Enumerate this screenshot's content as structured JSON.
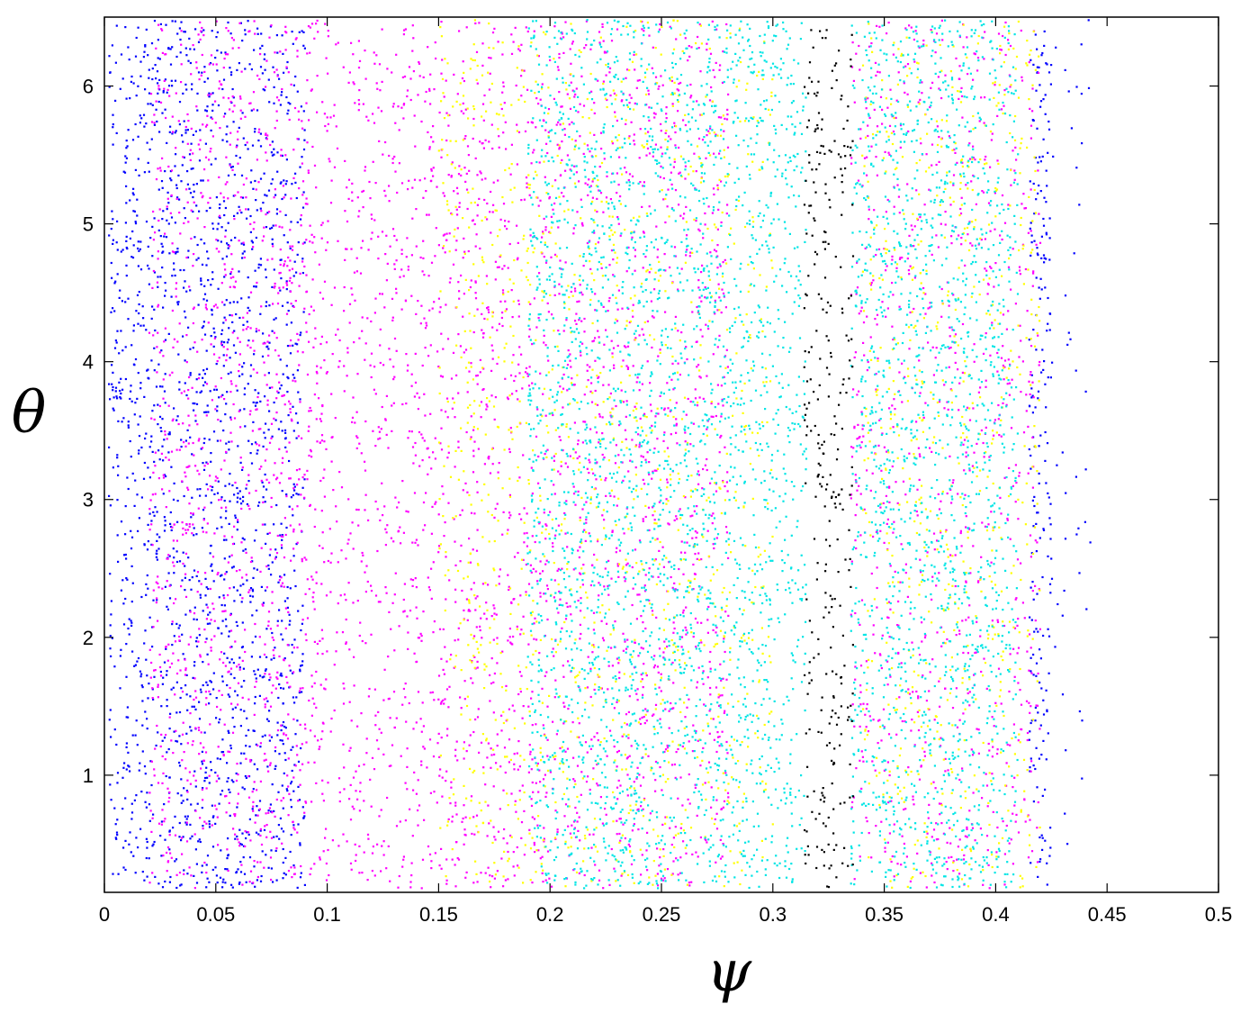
{
  "chart_data": {
    "type": "scatter",
    "title": "",
    "xlabel": "ψ",
    "ylabel": "θ",
    "xlim": [
      0,
      0.5
    ],
    "ylim": [
      0.15,
      6.5
    ],
    "x_ticks": [
      "0",
      "0.05",
      "0.1",
      "0.15",
      "0.2",
      "0.25",
      "0.3",
      "0.35",
      "0.4",
      "0.45",
      "0.5"
    ],
    "y_ticks": [
      "1",
      "2",
      "3",
      "4",
      "5",
      "6"
    ],
    "grid": false,
    "legend": "none",
    "series": [
      {
        "color": "#0000ff",
        "regions": [
          {
            "x_range": [
              0.002,
              0.09
            ],
            "y_range": [
              0.18,
              6.48
            ],
            "density": "high"
          },
          {
            "x_range": [
              0.415,
              0.425
            ],
            "y_range": [
              0.18,
              6.48
            ],
            "density": "high",
            "note": "outer boundary"
          },
          {
            "x_range": [
              0.425,
              0.443
            ],
            "y_range": [
              0.18,
              6.48
            ],
            "density": "sparse"
          }
        ]
      },
      {
        "color": "#ff00ff",
        "regions": [
          {
            "x_range": [
              0.02,
              0.28
            ],
            "y_range": [
              0.18,
              6.48
            ],
            "density": "high"
          },
          {
            "x_range": [
              0.335,
              0.42
            ],
            "y_range": [
              0.18,
              6.48
            ],
            "density": "medium"
          }
        ]
      },
      {
        "color": "#ffff00",
        "regions": [
          {
            "x_range": [
              0.15,
              0.3
            ],
            "y_range": [
              0.18,
              6.48
            ],
            "density": "islands"
          },
          {
            "x_range": [
              0.34,
              0.42
            ],
            "y_range": [
              0.18,
              6.48
            ],
            "density": "islands"
          }
        ]
      },
      {
        "color": "#00e5e5",
        "regions": [
          {
            "x_range": [
              0.19,
              0.315
            ],
            "y_range": [
              0.18,
              6.48
            ],
            "density": "high"
          },
          {
            "x_range": [
              0.335,
              0.41
            ],
            "y_range": [
              0.18,
              6.48
            ],
            "density": "high"
          }
        ]
      },
      {
        "color": "#000000",
        "regions": [
          {
            "x_range": [
              0.314,
              0.336
            ],
            "y_range": [
              0.18,
              6.48
            ],
            "density": "very high"
          }
        ]
      }
    ]
  }
}
